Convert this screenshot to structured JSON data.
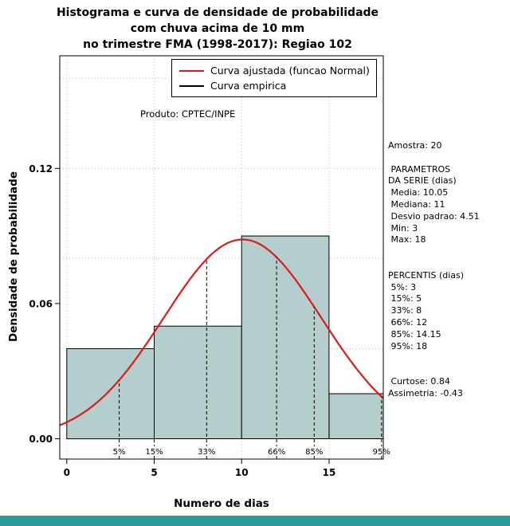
{
  "page": {
    "background": "#ffffff",
    "bottom_bar_color": "#2a9c9c"
  },
  "title": {
    "line1": "Histograma e curva de densidade de probabilidade",
    "line2": "com chuva acima de 10 mm",
    "line3": "no trimestre FMA (1998-2017): Regiao 102"
  },
  "side_panel": {
    "lines": [
      "Amostra: 20",
      "",
      " PARAMETROS",
      "DA SERIE (dias)",
      " Media: 10.05",
      " Mediana: 11",
      " Desvio padrao: 4.51",
      " Min: 3",
      " Max: 18",
      "",
      "",
      "PERCENTIS (dias)",
      " 5%: 3",
      " 15%: 5",
      " 33%: 8",
      " 66%: 12",
      " 85%: 14.15",
      " 95%: 18",
      "",
      "",
      " Curtose: 0.84",
      "Assimetria: -0.43"
    ]
  },
  "chart_data": {
    "type": "bar",
    "subtype": "histogram-with-fitted-density-curve",
    "title": "Histograma e curva de densidade de probabilidade com chuva acima de 10 mm no trimestre FMA (1998-2017): Regiao 102",
    "xlabel": "Numero de dias",
    "ylabel": "Densidade de probabilidade",
    "xlim": [
      -0.4,
      18.1
    ],
    "ylim": [
      -0.009,
      0.17
    ],
    "xticks": [
      0,
      5,
      10,
      15
    ],
    "yticks": [
      0,
      0.06,
      0.12
    ],
    "ytick_labels": [
      "0.00",
      "0.06",
      "0.12"
    ],
    "grid_x": [
      0,
      5,
      10,
      15
    ],
    "grid_y": [
      0,
      0.04,
      0.08,
      0.12,
      0.16
    ],
    "histogram": {
      "breaks": [
        0,
        5,
        10,
        15,
        20
      ],
      "densities": [
        0.04,
        0.05,
        0.09,
        0.02
      ],
      "counts": [
        4,
        5,
        9,
        2
      ],
      "fill": "#b4cdcd",
      "stroke": "#000000"
    },
    "normal_curve": {
      "mean": 10.05,
      "sd": 4.51,
      "color": "#e01a1a"
    },
    "percentiles": [
      {
        "label": "5%",
        "x": 3
      },
      {
        "label": "15%",
        "x": 5
      },
      {
        "label": "33%",
        "x": 8
      },
      {
        "label": "66%",
        "x": 12
      },
      {
        "label": "85%",
        "x": 14.15
      },
      {
        "label": "95%",
        "x": 18
      }
    ],
    "legend": [
      {
        "label": "Curva ajustada (funcao Normal)",
        "color": "#e01a1a"
      },
      {
        "label": "Curva empirica",
        "color": "#000000"
      }
    ],
    "annotation": "Produto: CPTEC/INPE"
  }
}
